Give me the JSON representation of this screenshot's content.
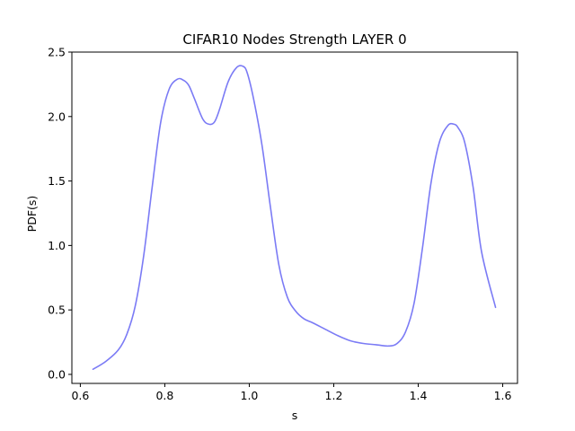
{
  "chart_data": {
    "type": "line",
    "title": "CIFAR10 Nodes Strength LAYER 0",
    "xlabel": "s",
    "ylabel": "PDF(s)",
    "xlim": [
      0.58,
      1.635
    ],
    "ylim": [
      -0.07,
      2.5
    ],
    "xticks": [
      0.6,
      0.8,
      1.0,
      1.2,
      1.4,
      1.6
    ],
    "xtick_labels": [
      "0.6",
      "0.8",
      "1.0",
      "1.2",
      "1.4",
      "1.6"
    ],
    "yticks": [
      0.0,
      0.5,
      1.0,
      1.5,
      2.0,
      2.5
    ],
    "ytick_labels": [
      "0.0",
      "0.5",
      "1.0",
      "1.5",
      "2.0",
      "2.5"
    ],
    "grid": false,
    "series": [
      {
        "color": "#7b7bf5",
        "x": [
          0.63,
          0.66,
          0.69,
          0.71,
          0.73,
          0.75,
          0.77,
          0.79,
          0.81,
          0.83,
          0.845,
          0.857,
          0.87,
          0.89,
          0.905,
          0.918,
          0.93,
          0.95,
          0.97,
          0.985,
          0.995,
          1.01,
          1.03,
          1.05,
          1.07,
          1.09,
          1.11,
          1.13,
          1.15,
          1.18,
          1.21,
          1.24,
          1.27,
          1.3,
          1.33,
          1.35,
          1.37,
          1.39,
          1.41,
          1.43,
          1.45,
          1.47,
          1.485,
          1.495,
          1.51,
          1.53,
          1.55,
          1.583
        ],
        "y": [
          0.04,
          0.1,
          0.19,
          0.31,
          0.53,
          0.92,
          1.45,
          1.95,
          2.21,
          2.29,
          2.28,
          2.24,
          2.14,
          1.98,
          1.94,
          1.96,
          2.06,
          2.27,
          2.38,
          2.39,
          2.34,
          2.14,
          1.78,
          1.3,
          0.85,
          0.6,
          0.49,
          0.43,
          0.4,
          0.35,
          0.3,
          0.26,
          0.24,
          0.23,
          0.22,
          0.24,
          0.33,
          0.55,
          0.98,
          1.48,
          1.8,
          1.93,
          1.94,
          1.91,
          1.8,
          1.45,
          0.95,
          0.52
        ]
      }
    ]
  }
}
